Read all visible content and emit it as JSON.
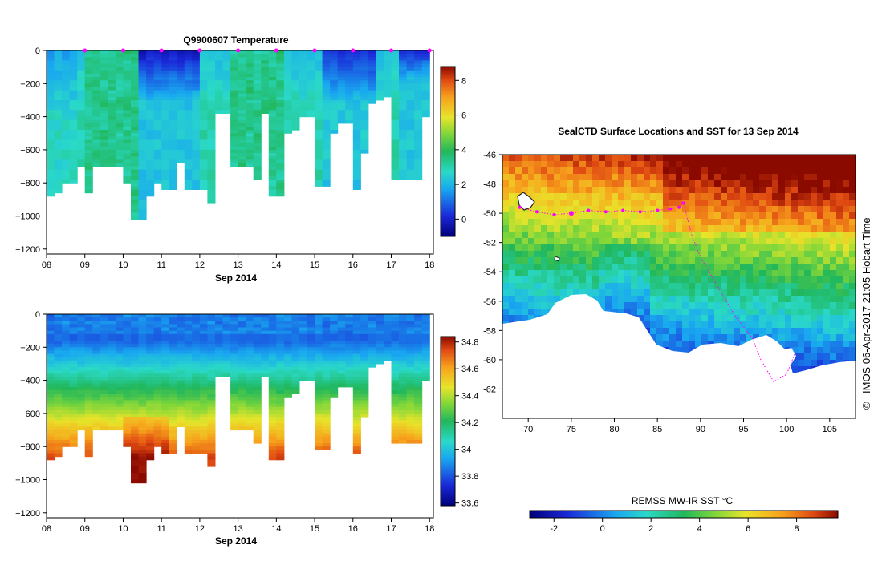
{
  "chart_data": [
    {
      "type": "heatmap",
      "title": "Q9900607  Temperature",
      "xlabel": "Sep 2014",
      "ylabel": "",
      "x_ticks": [
        "08",
        "09",
        "10",
        "11",
        "12",
        "13",
        "14",
        "15",
        "16",
        "17",
        "18"
      ],
      "y_ticks": [
        "0",
        "−200",
        "−400",
        "−600",
        "−800",
        "−1000",
        "−1200"
      ],
      "ylim": [
        -1230,
        0
      ],
      "xlim": [
        8.0,
        18.1
      ],
      "colorbar_ticks": [
        "0",
        "2",
        "4",
        "6",
        "8"
      ],
      "colorbar_range": [
        -1,
        8.8
      ],
      "profile_times": [
        8.1,
        8.3,
        8.5,
        8.7,
        8.9,
        9.1,
        9.3,
        9.5,
        9.7,
        9.9,
        10.1,
        10.3,
        10.5,
        10.7,
        10.9,
        11.1,
        11.3,
        11.5,
        11.7,
        11.9,
        12.1,
        12.3,
        12.5,
        12.7,
        12.9,
        13.1,
        13.3,
        13.5,
        13.7,
        13.9,
        14.1,
        14.3,
        14.5,
        14.7,
        14.9,
        15.1,
        15.3,
        15.5,
        15.7,
        15.9,
        16.1,
        16.3,
        16.5,
        16.7,
        16.9,
        17.1,
        17.3,
        17.5,
        17.7,
        17.9
      ],
      "profile_max_depths": [
        880,
        850,
        800,
        800,
        700,
        860,
        700,
        700,
        700,
        700,
        790,
        1020,
        1020,
        880,
        790,
        840,
        840,
        680,
        840,
        840,
        840,
        910,
        380,
        380,
        700,
        700,
        700,
        770,
        380,
        880,
        880,
        500,
        470,
        400,
        400,
        810,
        810,
        500,
        440,
        440,
        840,
        610,
        310,
        290,
        280,
        780,
        780,
        780,
        770,
        390
      ]
    },
    {
      "type": "heatmap",
      "title": "",
      "xlabel": "Sep 2014",
      "ylabel": "",
      "x_ticks": [
        "08",
        "09",
        "10",
        "11",
        "12",
        "13",
        "14",
        "15",
        "16",
        "17",
        "18"
      ],
      "y_ticks": [
        "0",
        "−200",
        "−400",
        "−600",
        "−800",
        "−1000",
        "−1200"
      ],
      "ylim": [
        -1230,
        0
      ],
      "xlim": [
        8.0,
        18.1
      ],
      "colorbar_ticks": [
        "33.6",
        "33.8",
        "34",
        "34.2",
        "34.4",
        "34.6",
        "34.8"
      ],
      "colorbar_range": [
        33.58,
        34.84
      ]
    },
    {
      "type": "heatmap",
      "title": "SealCTD Surface Locations and SST for 13 Sep 2014",
      "xlabel": "",
      "ylabel": "",
      "x_ticks": [
        "70",
        "75",
        "80",
        "85",
        "90",
        "95",
        "100",
        "105"
      ],
      "y_ticks": [
        "-46",
        "-48",
        "-50",
        "-52",
        "-54",
        "-56",
        "-58",
        "-60",
        "-62"
      ],
      "xlim": [
        67,
        108
      ],
      "ylim": [
        -64,
        -46
      ],
      "colorbar_label": "REMSS MW-IR SST °C",
      "colorbar_ticks": [
        "-2",
        "0",
        "2",
        "4",
        "6",
        "8"
      ],
      "colorbar_range": [
        -3,
        9.7
      ],
      "track": [
        [
          69,
          -49.6
        ],
        [
          71,
          -49.9
        ],
        [
          73,
          -50.1
        ],
        [
          75,
          -50.0
        ],
        [
          77,
          -49.8
        ],
        [
          79,
          -49.9
        ],
        [
          81,
          -49.8
        ],
        [
          83,
          -49.9
        ],
        [
          85,
          -49.8
        ],
        [
          86.5,
          -49.7
        ],
        [
          87.5,
          -49.6
        ],
        [
          88,
          -49.3
        ],
        [
          89,
          -51.5
        ],
        [
          90,
          -53
        ],
        [
          92,
          -55
        ],
        [
          94,
          -57
        ],
        [
          96,
          -58.5
        ],
        [
          97,
          -60
        ],
        [
          98.5,
          -61.5
        ],
        [
          100,
          -61
        ],
        [
          101,
          -59.5
        ]
      ],
      "track_color": "#ff00ff",
      "land_color": "#ffffff"
    }
  ],
  "credit": "IMOS 06-Apr-2017 21:05 Hobart Time",
  "copyright_symbol": "©"
}
